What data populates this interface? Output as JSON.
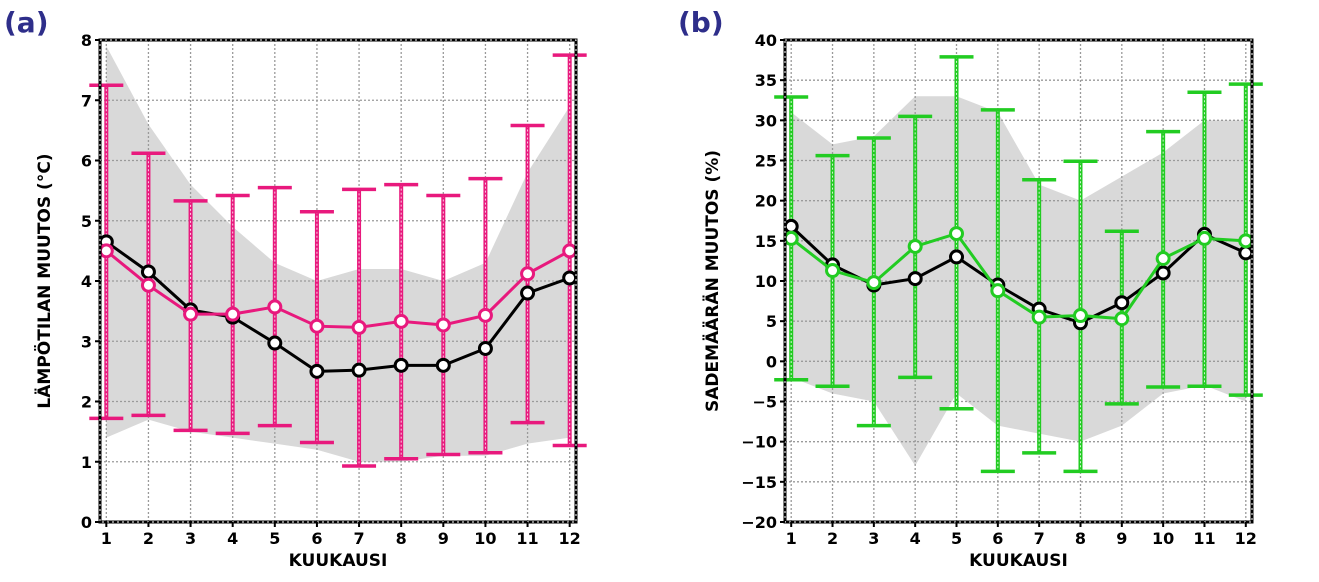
{
  "panels": {
    "a": {
      "label": "(a)",
      "label_color": "#2e2e8a"
    },
    "b": {
      "label": "(b)",
      "label_color": "#2e2e8a"
    }
  },
  "chart_data": [
    {
      "type": "line",
      "panel": "(a)",
      "xlabel": "KUUKAUSI",
      "ylabel": "LÄMPÖTILAN MUUTOS (°C)",
      "x": [
        1,
        2,
        3,
        4,
        5,
        6,
        7,
        8,
        9,
        10,
        11,
        12
      ],
      "xlim": [
        0.85,
        12.15
      ],
      "ylim": [
        0,
        8
      ],
      "yticks": [
        0,
        1,
        2,
        3,
        4,
        5,
        6,
        7,
        8
      ],
      "grid": true,
      "shaded_range": {
        "color": "#d9d9d9",
        "upper": [
          7.9,
          6.6,
          5.6,
          4.9,
          4.3,
          4.0,
          4.2,
          4.2,
          4.0,
          4.3,
          5.8,
          6.9
        ],
        "lower": [
          1.4,
          1.7,
          1.5,
          1.4,
          1.3,
          1.2,
          1.0,
          1.0,
          1.1,
          1.1,
          1.3,
          1.4
        ]
      },
      "series": [
        {
          "color": "#000000",
          "values": [
            4.65,
            4.15,
            3.52,
            3.4,
            2.97,
            2.5,
            2.52,
            2.6,
            2.6,
            2.88,
            3.8,
            4.05
          ]
        },
        {
          "color": "#e8197d",
          "values": [
            4.5,
            3.93,
            3.45,
            3.45,
            3.57,
            3.25,
            3.23,
            3.33,
            3.27,
            3.43,
            4.12,
            4.5
          ]
        }
      ],
      "error_bars": {
        "color": "#e8197d",
        "upper": [
          7.25,
          6.12,
          5.33,
          5.42,
          5.55,
          5.15,
          5.52,
          5.6,
          5.42,
          5.7,
          6.58,
          7.75
        ],
        "lower": [
          1.72,
          1.77,
          1.52,
          1.47,
          1.6,
          1.32,
          0.93,
          1.05,
          1.12,
          1.15,
          1.65,
          1.27
        ]
      }
    },
    {
      "type": "line",
      "panel": "(b)",
      "xlabel": "KUUKAUSI",
      "ylabel": "SADEMÄÄRÄN MUUTOS (%)",
      "x": [
        1,
        2,
        3,
        4,
        5,
        6,
        7,
        8,
        9,
        10,
        11,
        12
      ],
      "xlim": [
        0.85,
        12.15
      ],
      "ylim": [
        -20,
        40
      ],
      "yticks": [
        -20,
        -15,
        -10,
        -5,
        0,
        5,
        10,
        15,
        20,
        25,
        30,
        35,
        40
      ],
      "grid": true,
      "shaded_range": {
        "color": "#d9d9d9",
        "upper": [
          31,
          27,
          28,
          33,
          33,
          31,
          22,
          20,
          23,
          26,
          30,
          30
        ],
        "lower": [
          -2,
          -4,
          -5,
          -13,
          -4,
          -8,
          -9,
          -10,
          -8,
          -4,
          -3,
          -5
        ]
      },
      "series": [
        {
          "color": "#000000",
          "values": [
            16.8,
            12.0,
            9.5,
            10.3,
            13.0,
            9.5,
            6.5,
            4.8,
            7.3,
            11.0,
            15.8,
            13.5
          ]
        },
        {
          "color": "#22cc22",
          "values": [
            15.3,
            11.3,
            9.8,
            14.3,
            15.9,
            8.8,
            5.5,
            5.7,
            5.3,
            12.8,
            15.3,
            15.0
          ]
        }
      ],
      "error_bars": {
        "color": "#22cc22",
        "upper": [
          32.9,
          25.6,
          27.8,
          30.5,
          37.9,
          31.3,
          22.6,
          24.9,
          16.2,
          28.6,
          33.5,
          34.5
        ],
        "lower": [
          -2.3,
          -3.1,
          -8.0,
          -2.0,
          -5.9,
          -13.7,
          -11.4,
          -13.7,
          -5.3,
          -3.2,
          -3.1,
          -4.2
        ]
      }
    }
  ]
}
